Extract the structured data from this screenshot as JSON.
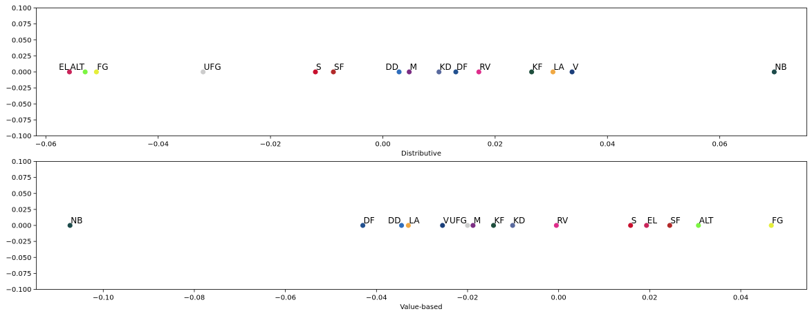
{
  "chart_data": [
    {
      "type": "scatter",
      "xlabel": "Distributive",
      "ylabel": "",
      "xlim": [
        -0.0617,
        0.0755
      ],
      "ylim": [
        -0.1,
        0.1
      ],
      "xticks": [
        -0.06,
        -0.04,
        -0.02,
        0.0,
        0.02,
        0.04,
        0.06
      ],
      "xtick_labels": [
        "−0.06",
        "−0.04",
        "−0.02",
        "0.00",
        "0.02",
        "0.04",
        "0.06"
      ],
      "yticks": [
        0.1,
        0.075,
        0.05,
        0.025,
        0.0,
        -0.025,
        -0.05,
        -0.075,
        -0.1
      ],
      "ytick_labels": [
        "0.100",
        "0.075",
        "0.050",
        "0.025",
        "0.000",
        "−0.025",
        "−0.050",
        "−0.075",
        "−0.100"
      ],
      "grid": false,
      "points": [
        {
          "label": "EL",
          "x": -0.0558,
          "y": 0,
          "color": "#c9245a",
          "label_pos": "left"
        },
        {
          "label": "ALT",
          "x": -0.053,
          "y": 0,
          "color": "#7cf542",
          "label_pos": "left"
        },
        {
          "label": "FG",
          "x": -0.051,
          "y": 0,
          "color": "#e5ee3a",
          "label_pos": "right"
        },
        {
          "label": "UFG",
          "x": -0.032,
          "y": 0,
          "color": "#cccccc",
          "label_pos": "right"
        },
        {
          "label": "S",
          "x": -0.012,
          "y": 0,
          "color": "#c8102e",
          "label_pos": "right"
        },
        {
          "label": "SF",
          "x": -0.0088,
          "y": 0,
          "color": "#b22a2a",
          "label_pos": "right"
        },
        {
          "label": "DD",
          "x": 0.0029,
          "y": 0,
          "color": "#2f6ebc",
          "label_pos": "left"
        },
        {
          "label": "M",
          "x": 0.0047,
          "y": 0,
          "color": "#7b2d83",
          "label_pos": "right"
        },
        {
          "label": "KD",
          "x": 0.01,
          "y": 0,
          "color": "#5a6a9e",
          "label_pos": "right"
        },
        {
          "label": "DF",
          "x": 0.013,
          "y": 0,
          "color": "#22508f",
          "label_pos": "right"
        },
        {
          "label": "RV",
          "x": 0.0171,
          "y": 0,
          "color": "#de2d8b",
          "label_pos": "right"
        },
        {
          "label": "KF",
          "x": 0.0265,
          "y": 0,
          "color": "#1f4e3d",
          "label_pos": "right"
        },
        {
          "label": "LA",
          "x": 0.0303,
          "y": 0,
          "color": "#f0a843",
          "label_pos": "right"
        },
        {
          "label": "V",
          "x": 0.0337,
          "y": 0,
          "color": "#1b3f7a",
          "label_pos": "right"
        },
        {
          "label": "NB",
          "x": 0.0697,
          "y": 0,
          "color": "#1c4a4a",
          "label_pos": "right"
        }
      ]
    },
    {
      "type": "scatter",
      "xlabel": "Value-based",
      "ylabel": "",
      "xlim": [
        -0.1147,
        0.0545
      ],
      "ylim": [
        -0.1,
        0.1
      ],
      "xticks": [
        -0.1,
        -0.08,
        -0.06,
        -0.04,
        -0.02,
        0.0,
        0.02,
        0.04
      ],
      "xtick_labels": [
        "−0.10",
        "−0.08",
        "−0.06",
        "−0.04",
        "−0.02",
        "0.00",
        "0.02",
        "0.04"
      ],
      "yticks": [
        0.1,
        0.075,
        0.05,
        0.025,
        0.0,
        -0.025,
        -0.05,
        -0.075,
        -0.1
      ],
      "ytick_labels": [
        "0.100",
        "0.075",
        "0.050",
        "0.025",
        "0.000",
        "−0.025",
        "−0.050",
        "−0.075",
        "−0.100"
      ],
      "grid": false,
      "points": [
        {
          "label": "NB",
          "x": -0.1073,
          "y": 0,
          "color": "#1c4a4a",
          "label_pos": "right"
        },
        {
          "label": "DF",
          "x": -0.043,
          "y": 0,
          "color": "#22508f",
          "label_pos": "right"
        },
        {
          "label": "DD",
          "x": -0.0345,
          "y": 0,
          "color": "#2f6ebc",
          "label_pos": "left"
        },
        {
          "label": "LA",
          "x": -0.033,
          "y": 0,
          "color": "#f0a843",
          "label_pos": "right"
        },
        {
          "label": "V",
          "x": -0.0255,
          "y": 0,
          "color": "#1b3f7a",
          "label_pos": "right"
        },
        {
          "label": "UFG",
          "x": -0.02,
          "y": 0,
          "color": "#cccccc",
          "label_pos": "left"
        },
        {
          "label": "M",
          "x": -0.0188,
          "y": 0,
          "color": "#7b2d83",
          "label_pos": "right"
        },
        {
          "label": "KF",
          "x": -0.0143,
          "y": 0,
          "color": "#1f4e3d",
          "label_pos": "right"
        },
        {
          "label": "KD",
          "x": -0.0101,
          "y": 0,
          "color": "#5a6a9e",
          "label_pos": "right"
        },
        {
          "label": "RV",
          "x": -0.0005,
          "y": 0,
          "color": "#de2d8b",
          "label_pos": "right"
        },
        {
          "label": "S",
          "x": 0.0158,
          "y": 0,
          "color": "#c8102e",
          "label_pos": "right"
        },
        {
          "label": "EL",
          "x": 0.0193,
          "y": 0,
          "color": "#c9245a",
          "label_pos": "right"
        },
        {
          "label": "SF",
          "x": 0.0244,
          "y": 0,
          "color": "#b22a2a",
          "label_pos": "right"
        },
        {
          "label": "ALT",
          "x": 0.0307,
          "y": 0,
          "color": "#7cf542",
          "label_pos": "right"
        },
        {
          "label": "FG",
          "x": 0.0467,
          "y": 0,
          "color": "#e5ee3a",
          "label_pos": "right"
        }
      ]
    }
  ]
}
